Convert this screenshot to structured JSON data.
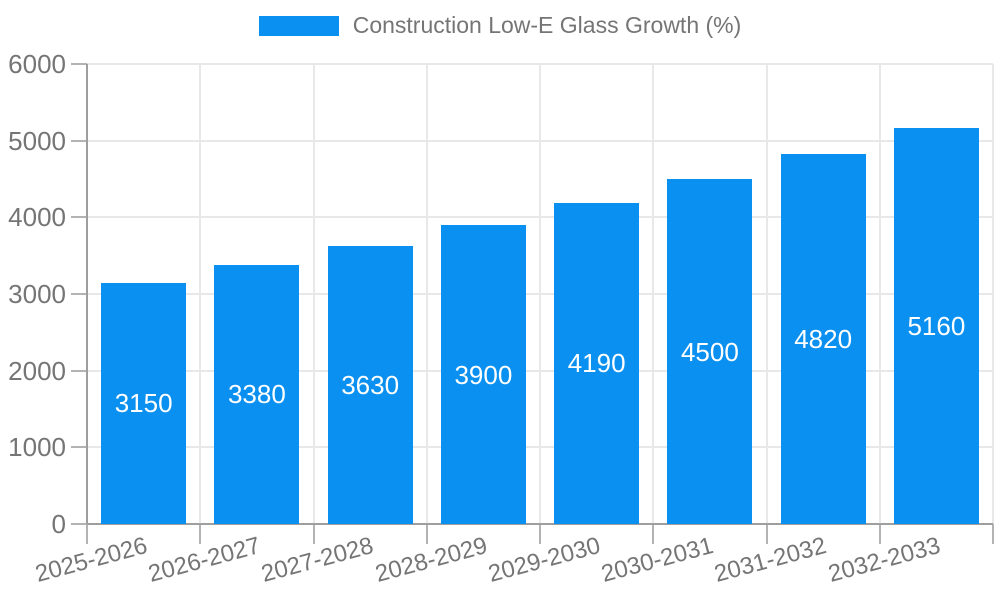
{
  "colors": {
    "bar": "#0a90f0",
    "axis": "#9e9e9e",
    "tick": "#b3b3b3",
    "grid": "#e8e8e8",
    "text": "#757575",
    "value_text": "#ffffff",
    "background": "#ffffff"
  },
  "chart_data": {
    "type": "bar",
    "title": "Construction Low-E Glass Growth (%)",
    "categories": [
      "2025-2026",
      "2026-2027",
      "2027-2028",
      "2028-2029",
      "2029-2030",
      "2030-2031",
      "2031-2032",
      "2032-2033"
    ],
    "series": [
      {
        "name": "Construction Low-E Glass Growth (%)",
        "values": [
          3150,
          3380,
          3630,
          3900,
          4190,
          4500,
          4820,
          5160
        ]
      }
    ],
    "xlabel": "",
    "ylabel": "",
    "ylim": [
      0,
      6000
    ],
    "yticks": [
      0,
      1000,
      2000,
      3000,
      4000,
      5000,
      6000
    ],
    "grid": true,
    "legend_position": "top-center",
    "value_labels": "inside-center",
    "x_tick_rotation_deg": 15
  }
}
